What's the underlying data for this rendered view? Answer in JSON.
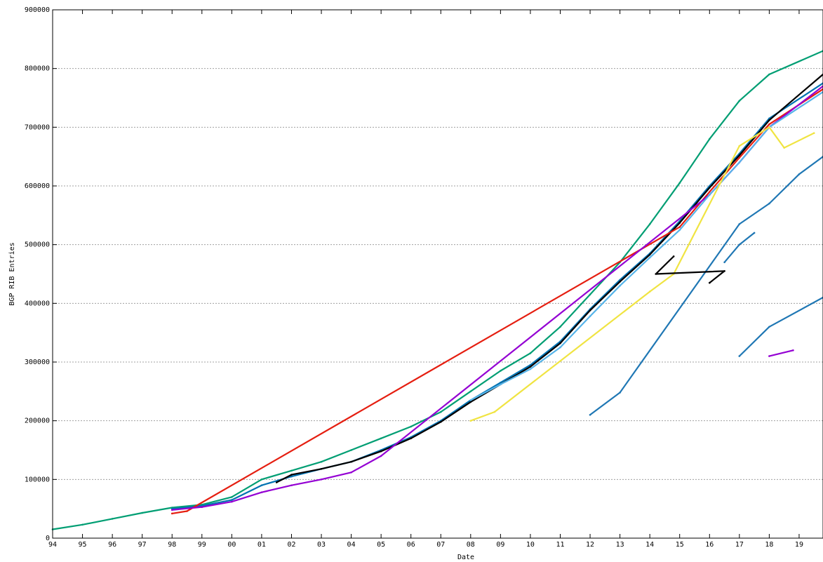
{
  "chart_data": {
    "type": "scatter",
    "title": "",
    "xlabel": "Date",
    "ylabel": "BGP RIB Entries",
    "xlim": [
      1994,
      2019.8
    ],
    "ylim": [
      0,
      900000
    ],
    "x_tick_labels": [
      "94",
      "95",
      "96",
      "97",
      "98",
      "99",
      "00",
      "01",
      "02",
      "03",
      "04",
      "05",
      "06",
      "07",
      "08",
      "09",
      "10",
      "11",
      "12",
      "13",
      "14",
      "15",
      "16",
      "17",
      "18",
      "19"
    ],
    "y_tick_labels": [
      "0",
      "100000",
      "200000",
      "300000",
      "400000",
      "500000",
      "600000",
      "700000",
      "800000",
      "900000"
    ],
    "grid": true,
    "legend": "none",
    "series": [
      {
        "color": "#009e73",
        "points": [
          [
            1994,
            15000
          ],
          [
            1995,
            23000
          ],
          [
            1996,
            33000
          ],
          [
            1997,
            43000
          ],
          [
            1998,
            52000
          ],
          [
            1999,
            57000
          ],
          [
            2000,
            70000
          ],
          [
            2001,
            100000
          ],
          [
            2002,
            115000
          ],
          [
            2003,
            130000
          ],
          [
            2004,
            150000
          ],
          [
            2005,
            170000
          ],
          [
            2006,
            190000
          ],
          [
            2007,
            215000
          ],
          [
            2008,
            250000
          ],
          [
            2009,
            285000
          ],
          [
            2010,
            315000
          ],
          [
            2011,
            360000
          ],
          [
            2012,
            415000
          ],
          [
            2013,
            470000
          ],
          [
            2014,
            535000
          ],
          [
            2015,
            605000
          ],
          [
            2016,
            680000
          ],
          [
            2017,
            745000
          ],
          [
            2018,
            790000
          ],
          [
            2019.8,
            830000
          ]
        ]
      },
      {
        "color": "#0072b2",
        "points": [
          [
            1998,
            50000
          ],
          [
            1999,
            55000
          ],
          [
            2000,
            65000
          ],
          [
            2001,
            90000
          ],
          [
            2002,
            105000
          ],
          [
            2003,
            118000
          ],
          [
            2004,
            130000
          ],
          [
            2005,
            150000
          ],
          [
            2006,
            172000
          ],
          [
            2007,
            200000
          ],
          [
            2008,
            235000
          ],
          [
            2009,
            265000
          ],
          [
            2010,
            295000
          ],
          [
            2011,
            335000
          ],
          [
            2012,
            390000
          ],
          [
            2013,
            440000
          ],
          [
            2014,
            485000
          ],
          [
            2015,
            540000
          ],
          [
            2016,
            600000
          ],
          [
            2017,
            655000
          ],
          [
            2018,
            715000
          ],
          [
            2019.8,
            775000
          ]
        ]
      },
      {
        "color": "#000000",
        "points": [
          [
            2001.5,
            95000
          ],
          [
            2002,
            108000
          ],
          [
            2003,
            118000
          ],
          [
            2004,
            130000
          ],
          [
            2005,
            148000
          ],
          [
            2006,
            170000
          ],
          [
            2007,
            198000
          ],
          [
            2008,
            232000
          ],
          [
            2009,
            262000
          ],
          [
            2010,
            292000
          ],
          [
            2011,
            332000
          ],
          [
            2012,
            388000
          ],
          [
            2013,
            437000
          ],
          [
            2014,
            483000
          ],
          [
            2015,
            537000
          ],
          [
            2016,
            597000
          ],
          [
            2017,
            652000
          ],
          [
            2018,
            712000
          ],
          [
            2019.8,
            790000
          ]
        ]
      },
      {
        "color": "#e51e10",
        "points": [
          [
            1998,
            42000
          ],
          [
            1998.5,
            46000
          ],
          [
            2015,
            530000
          ],
          [
            2016,
            590000
          ],
          [
            2017,
            648000
          ],
          [
            2018,
            705000
          ],
          [
            2019.8,
            765000
          ]
        ]
      },
      {
        "color": "#9400d3",
        "points": [
          [
            1998,
            48000
          ],
          [
            1999,
            53000
          ],
          [
            2000,
            62000
          ],
          [
            2001,
            78000
          ],
          [
            2002,
            90000
          ],
          [
            2003,
            100000
          ],
          [
            2004,
            112000
          ],
          [
            2005,
            140000
          ],
          [
            2016,
            585000
          ],
          [
            2017,
            640000
          ],
          [
            2018,
            700000
          ],
          [
            2019.8,
            770000
          ]
        ]
      },
      {
        "color": "#56b4e9",
        "points": [
          [
            2008,
            235000
          ],
          [
            2009,
            262000
          ],
          [
            2010,
            288000
          ],
          [
            2011,
            325000
          ],
          [
            2012,
            378000
          ],
          [
            2013,
            430000
          ],
          [
            2014,
            478000
          ],
          [
            2015,
            525000
          ],
          [
            2016,
            585000
          ],
          [
            2017,
            640000
          ],
          [
            2018,
            700000
          ],
          [
            2019.8,
            760000
          ]
        ]
      },
      {
        "color": "#f0e442",
        "points": [
          [
            2008,
            200000
          ],
          [
            2008.8,
            215000
          ],
          [
            2014,
            420000
          ],
          [
            2014.8,
            450000
          ],
          [
            2017,
            668000
          ],
          [
            2018,
            700000
          ],
          [
            2018.5,
            665000
          ],
          [
            2019.5,
            690000
          ]
        ]
      },
      {
        "color": "#1f77b4",
        "points": [
          [
            2012,
            210000
          ],
          [
            2013,
            248000
          ],
          [
            2017,
            535000
          ],
          [
            2018,
            570000
          ],
          [
            2019,
            620000
          ],
          [
            2019.8,
            650000
          ]
        ]
      },
      {
        "color": "#1f77b4",
        "points": [
          [
            2017,
            310000
          ],
          [
            2018,
            360000
          ],
          [
            2019.8,
            410000
          ]
        ]
      },
      {
        "color": "#9400d3",
        "points": [
          [
            2018,
            310000
          ],
          [
            2018.8,
            320000
          ]
        ]
      },
      {
        "color": "#000000",
        "points": [
          [
            2016,
            435000
          ],
          [
            2016.5,
            455000
          ],
          [
            2014.2,
            450000
          ],
          [
            2014.8,
            480000
          ]
        ]
      },
      {
        "color": "#1f77b4",
        "points": [
          [
            2016.5,
            470000
          ],
          [
            2017,
            500000
          ],
          [
            2017.5,
            520000
          ]
        ]
      }
    ]
  }
}
